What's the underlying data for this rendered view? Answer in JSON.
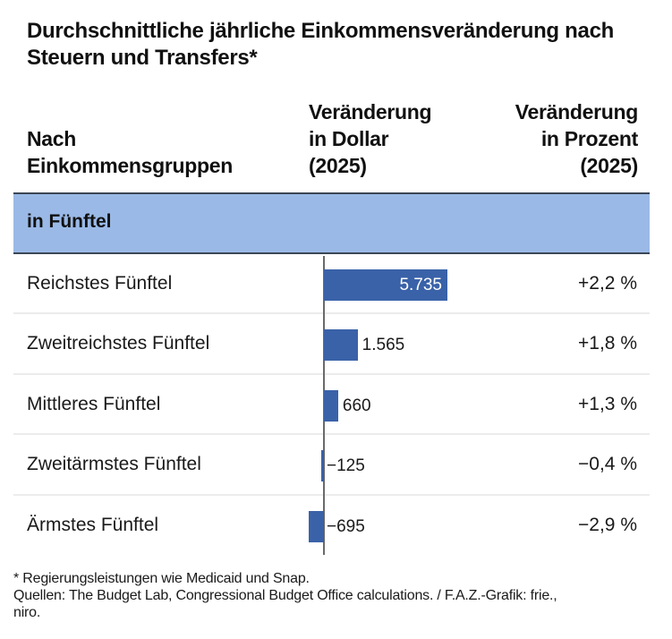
{
  "title": "Durchschnittliche jährliche Einkommensveränderung nach Steuern und Transfers*",
  "headers": {
    "group": [
      "Nach",
      "Einkommensgruppen"
    ],
    "dollar": [
      "Veränderung",
      "in Dollar",
      "(2025)"
    ],
    "percent": [
      "Veränderung",
      "in Prozent",
      "(2025)"
    ]
  },
  "section": "in Fünftel",
  "colors": {
    "bar": "#3a62a8",
    "band": "#9ab9e6",
    "axis": "#6a6a6a"
  },
  "chart_data": {
    "type": "bar",
    "orientation": "horizontal",
    "title": "Durchschnittliche jährliche Einkommensveränderung nach Steuern und Transfers*",
    "categories": [
      "Reichstes Fünftel",
      "Zweitreichstes Fünftel",
      "Mittleres Fünftel",
      "Zweitärmstes Fünftel",
      "Ärmstes Fünftel"
    ],
    "series": [
      {
        "name": "Veränderung in Dollar (2025)",
        "values": [
          5735,
          1565,
          660,
          -125,
          -695
        ],
        "labels": [
          "5.735",
          "1.565",
          "660",
          "−125",
          "−695"
        ]
      },
      {
        "name": "Veränderung in Prozent (2025)",
        "values": [
          2.2,
          1.8,
          1.3,
          -0.4,
          -2.9
        ],
        "labels": [
          "+2,2 %",
          "+1,8 %",
          "+1,3 %",
          "−0,4 %",
          "−2,9 %"
        ]
      }
    ],
    "xlim": [
      -695,
      5735
    ],
    "grid": false
  },
  "footnotes": [
    "* Regierungsleistungen wie Medicaid und Snap.",
    "Quellen: The Budget Lab, Congressional Budget Office calculations. / F.A.Z.-Grafik: frie.,",
    "niro."
  ]
}
